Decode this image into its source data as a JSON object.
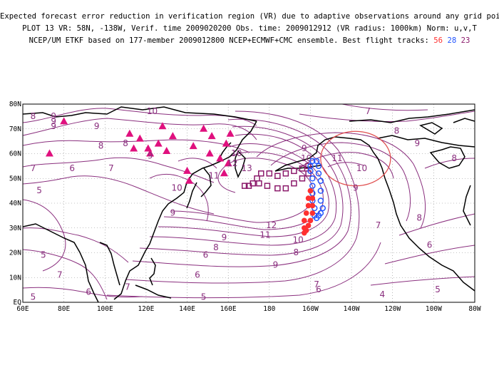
{
  "header": {
    "line1": "Expected forecast error reduction in verification region (VR) due to adaptive observations around any grid point.",
    "line2": "PLOT 13 VR: 58N, -138W, Verif. time 2009020200 Obs. time: 2009012912 (VR radius: 1000km) Norm: u,v,T",
    "line3_prefix": "NCEP/UM ETKF based on 177-member 2009012800 NCEP+ECMWF+CMC ensemble. Best flight tracks:",
    "tracks": [
      {
        "label": "56",
        "color": "#ff3030"
      },
      {
        "label": "28",
        "color": "#2255ff"
      },
      {
        "label": "23",
        "color": "#8b1a6b"
      }
    ]
  },
  "map": {
    "lon_range": [
      60,
      280
    ],
    "lat_range": [
      0,
      80
    ],
    "x_ticks": [
      "60E",
      "80E",
      "100E",
      "120E",
      "140E",
      "160E",
      "180",
      "160W",
      "140W",
      "120W",
      "100W",
      "80W"
    ],
    "y_ticks": [
      "EQ",
      "10N",
      "20N",
      "30N",
      "40N",
      "50N",
      "60N",
      "70N",
      "80N"
    ],
    "contour_color": "#8a2f7e",
    "contour_labels": [
      {
        "t": "8",
        "lon": 65,
        "lat": 74
      },
      {
        "t": "9",
        "lon": 75,
        "lat": 74
      },
      {
        "t": "10",
        "lon": 123,
        "lat": 76
      },
      {
        "t": "9",
        "lon": 75,
        "lat": 72
      },
      {
        "t": "9",
        "lon": 75,
        "lat": 70
      },
      {
        "t": "8",
        "lon": 98,
        "lat": 62
      },
      {
        "t": "9",
        "lon": 96,
        "lat": 70
      },
      {
        "t": "8",
        "lon": 110,
        "lat": 63
      },
      {
        "t": "9",
        "lon": 122,
        "lat": 58
      },
      {
        "t": "7",
        "lon": 65,
        "lat": 53
      },
      {
        "t": "6",
        "lon": 84,
        "lat": 53
      },
      {
        "t": "7",
        "lon": 103,
        "lat": 53
      },
      {
        "t": "5",
        "lon": 68,
        "lat": 44
      },
      {
        "t": "10",
        "lon": 135,
        "lat": 45
      },
      {
        "t": "11",
        "lon": 153,
        "lat": 50
      },
      {
        "t": "10",
        "lon": 164,
        "lat": 59
      },
      {
        "t": "12",
        "lon": 162,
        "lat": 55
      },
      {
        "t": "13",
        "lon": 169,
        "lat": 53
      },
      {
        "t": "9",
        "lon": 133,
        "lat": 35
      },
      {
        "t": "9",
        "lon": 197,
        "lat": 61
      },
      {
        "t": "10",
        "lon": 198,
        "lat": 57
      },
      {
        "t": "7",
        "lon": 228,
        "lat": 76
      },
      {
        "t": "8",
        "lon": 242,
        "lat": 68
      },
      {
        "t": "9",
        "lon": 252,
        "lat": 63
      },
      {
        "t": "8",
        "lon": 270,
        "lat": 57
      },
      {
        "t": "10",
        "lon": 225,
        "lat": 53
      },
      {
        "t": "11",
        "lon": 213,
        "lat": 57
      },
      {
        "t": "12",
        "lon": 181,
        "lat": 30
      },
      {
        "t": "11",
        "lon": 178,
        "lat": 26
      },
      {
        "t": "10",
        "lon": 194,
        "lat": 24
      },
      {
        "t": "9",
        "lon": 158,
        "lat": 25
      },
      {
        "t": "8",
        "lon": 154,
        "lat": 21
      },
      {
        "t": "6",
        "lon": 149,
        "lat": 18
      },
      {
        "t": "9",
        "lon": 183,
        "lat": 14
      },
      {
        "t": "8",
        "lon": 193,
        "lat": 19
      },
      {
        "t": "6",
        "lon": 145,
        "lat": 10
      },
      {
        "t": "7",
        "lon": 111,
        "lat": 5
      },
      {
        "t": "7",
        "lon": 78,
        "lat": 10
      },
      {
        "t": "5",
        "lon": 70,
        "lat": 18
      },
      {
        "t": "6",
        "lon": 92,
        "lat": 3
      },
      {
        "t": "5",
        "lon": 148,
        "lat": 1
      },
      {
        "t": "5",
        "lon": 65,
        "lat": 1
      },
      {
        "t": "6",
        "lon": 204,
        "lat": 4
      },
      {
        "t": "7",
        "lon": 203,
        "lat": 6
      },
      {
        "t": "4",
        "lon": 235,
        "lat": 2
      },
      {
        "t": "5",
        "lon": 262,
        "lat": 4
      },
      {
        "t": "7",
        "lon": 233,
        "lat": 30
      },
      {
        "t": "8",
        "lon": 253,
        "lat": 33
      },
      {
        "t": "6",
        "lon": 258,
        "lat": 22
      },
      {
        "t": "9",
        "lon": 222,
        "lat": 45
      }
    ],
    "triangles_lonlat": [
      [
        80,
        73
      ],
      [
        73,
        60
      ],
      [
        112,
        68
      ],
      [
        114,
        62
      ],
      [
        117,
        66
      ],
      [
        121,
        62
      ],
      [
        122,
        60
      ],
      [
        126,
        64
      ],
      [
        130,
        61
      ],
      [
        133,
        67
      ],
      [
        128,
        71
      ],
      [
        143,
        63
      ],
      [
        148,
        70
      ],
      [
        152,
        67
      ],
      [
        161,
        68
      ],
      [
        159,
        64
      ],
      [
        151,
        60
      ],
      [
        156,
        58
      ],
      [
        140,
        53
      ],
      [
        141,
        49
      ],
      [
        160,
        56
      ],
      [
        158,
        52
      ]
    ],
    "track_red_lonlat": [
      [
        200,
        45
      ],
      [
        201,
        42
      ],
      [
        201,
        39
      ],
      [
        201,
        36
      ],
      [
        200,
        33
      ],
      [
        199,
        31
      ],
      [
        198,
        29
      ],
      [
        197,
        28
      ],
      [
        197,
        30
      ],
      [
        197,
        33
      ],
      [
        198,
        36
      ],
      [
        199,
        39
      ],
      [
        199,
        42
      ],
      [
        200,
        45
      ]
    ],
    "track_blue_lonlat": [
      [
        203,
        57
      ],
      [
        204,
        55
      ],
      [
        204,
        52
      ],
      [
        205,
        49
      ],
      [
        205,
        45
      ],
      [
        205,
        41
      ],
      [
        206,
        38
      ],
      [
        205,
        36
      ],
      [
        204,
        35
      ],
      [
        203,
        34
      ],
      [
        202,
        35
      ],
      [
        202,
        38
      ],
      [
        201,
        41
      ],
      [
        201,
        44
      ],
      [
        201,
        47
      ],
      [
        201,
        50
      ],
      [
        200,
        53
      ],
      [
        200,
        55
      ],
      [
        201,
        57
      ]
    ],
    "track_purple_lonlat": [
      [
        175,
        48
      ],
      [
        179,
        47
      ],
      [
        184,
        46
      ],
      [
        188,
        46
      ],
      [
        192,
        48
      ],
      [
        196,
        50
      ],
      [
        199,
        52
      ],
      [
        199,
        55
      ],
      [
        196,
        54
      ],
      [
        192,
        53
      ],
      [
        188,
        52
      ],
      [
        184,
        51
      ],
      [
        180,
        52
      ],
      [
        176,
        52
      ],
      [
        174,
        50
      ],
      [
        172,
        48
      ],
      [
        170,
        47
      ],
      [
        168,
        47
      ]
    ],
    "vr_circle": {
      "lon": 222,
      "lat": 58,
      "rx_deg": 17,
      "ry_deg": 11,
      "color": "#e05050"
    }
  }
}
